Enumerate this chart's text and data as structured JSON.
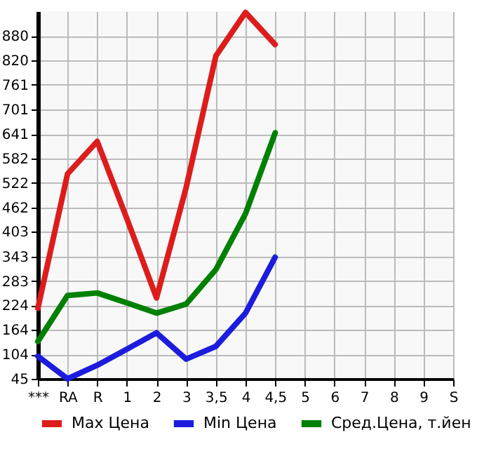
{
  "chart_data": {
    "type": "line",
    "categories": [
      "***",
      "RA",
      "R",
      "1",
      "2",
      "3",
      "3,5",
      "4",
      "4,5",
      "5",
      "6",
      "7",
      "8",
      "9",
      "S"
    ],
    "series": [
      {
        "name": "Max Цена",
        "color": "#dd1c1c",
        "values": [
          217,
          544,
          623,
          435,
          242,
          511,
          831,
          937,
          859,
          null,
          null,
          null,
          null,
          null,
          null
        ]
      },
      {
        "name": "Min Цена",
        "color": "#1c1cdd",
        "values": [
          100,
          45,
          78,
          117,
          157,
          93,
          124,
          205,
          341,
          null,
          null,
          null,
          null,
          null,
          null
        ]
      },
      {
        "name": "Сред.Цена, т.йен",
        "color": "#008000",
        "values": [
          136,
          248,
          254,
          230,
          205,
          227,
          311,
          447,
          644,
          null,
          null,
          null,
          null,
          null,
          null
        ]
      }
    ],
    "ylim": [
      45,
      940
    ],
    "yticks": [
      45,
      104,
      164,
      224,
      283,
      343,
      403,
      462,
      522,
      582,
      641,
      701,
      761,
      820,
      880
    ],
    "grid": true,
    "legend": "bottom",
    "marker": "none",
    "line_style": "solid"
  }
}
